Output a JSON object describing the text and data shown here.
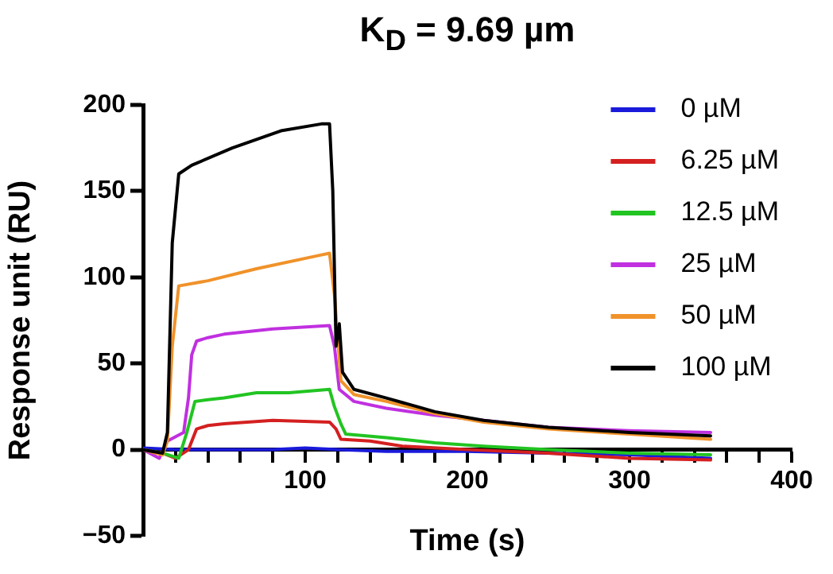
{
  "chart_data": {
    "type": "line",
    "title": "K$_{D}$ = 9.69 µm",
    "xlabel": "Time (s)",
    "ylabel": "Response unit (RU)",
    "xlim": [
      0,
      400
    ],
    "ylim": [
      -50,
      200
    ],
    "xticks": [
      {
        "value": 0,
        "label": null
      },
      {
        "value": 20,
        "label": null
      },
      {
        "value": 40,
        "label": null
      },
      {
        "value": 60,
        "label": null
      },
      {
        "value": 80,
        "label": null
      },
      100,
      {
        "value": 120,
        "label": null
      },
      {
        "value": 140,
        "label": null
      },
      {
        "value": 160,
        "label": null
      },
      {
        "value": 180,
        "label": null
      },
      200,
      {
        "value": 220,
        "label": null
      },
      {
        "value": 240,
        "label": null
      },
      {
        "value": 260,
        "label": null
      },
      {
        "value": 280,
        "label": null
      },
      300,
      {
        "value": 320,
        "label": null
      },
      {
        "value": 340,
        "label": null
      },
      {
        "value": 360,
        "label": null
      },
      {
        "value": 380,
        "label": null
      },
      400
    ],
    "yticks": [
      -50,
      0,
      50,
      100,
      150,
      200
    ],
    "grid": false,
    "legend": "top right",
    "marker": "none",
    "line_style": "solid",
    "series": [
      {
        "name": "0 µM",
        "color": "#1a1adb",
        "x": [
          0,
          20,
          40,
          60,
          80,
          100,
          120,
          150,
          200,
          250,
          300,
          350
        ],
        "values": [
          1,
          0,
          0,
          0,
          0,
          1,
          0,
          -1,
          -1,
          -2,
          -3,
          -5
        ]
      },
      {
        "name": "6.25 µM",
        "color": "#d42020",
        "x": [
          0,
          12,
          20,
          28,
          33,
          40,
          50,
          80,
          115,
          119,
          122,
          140,
          160,
          200,
          250,
          300,
          350
        ],
        "values": [
          0,
          -2,
          -5,
          0,
          12,
          14,
          15,
          17,
          16,
          12,
          6,
          5,
          2,
          0,
          -2,
          -5,
          -6
        ]
      },
      {
        "name": "12.5 µM",
        "color": "#22c422",
        "x": [
          0,
          12,
          22,
          27,
          32,
          40,
          50,
          70,
          90,
          115,
          118,
          122,
          125,
          150,
          180,
          210,
          250,
          300,
          350
        ],
        "values": [
          0,
          -2,
          -5,
          10,
          28,
          29,
          30,
          33,
          33,
          35,
          25,
          15,
          9,
          7,
          4,
          2,
          0,
          -2,
          -3
        ]
      },
      {
        "name": "25 µM",
        "color": "#c030e0",
        "x": [
          0,
          10,
          15,
          25,
          28,
          30,
          33,
          40,
          50,
          80,
          115,
          118,
          121,
          130,
          150,
          180,
          210,
          250,
          300,
          350
        ],
        "values": [
          0,
          -5,
          5,
          10,
          30,
          55,
          63,
          65,
          67,
          70,
          72,
          60,
          35,
          28,
          24,
          20,
          17,
          13,
          11,
          10
        ]
      },
      {
        "name": "50 µM",
        "color": "#f0922a",
        "x": [
          0,
          12,
          15,
          18,
          22,
          40,
          70,
          110,
          115,
          118,
          122,
          130,
          150,
          180,
          210,
          250,
          300,
          350
        ],
        "values": [
          0,
          -3,
          5,
          60,
          95,
          98,
          105,
          113,
          114,
          90,
          40,
          32,
          28,
          21,
          16,
          12,
          9,
          6
        ]
      },
      {
        "name": "100 µM",
        "color": "#000000",
        "x": [
          0,
          12,
          15,
          18,
          22,
          30,
          55,
          85,
          110,
          115,
          117,
          119,
          121,
          123,
          130,
          150,
          180,
          210,
          250,
          300,
          350
        ],
        "values": [
          0,
          -2,
          10,
          120,
          160,
          165,
          175,
          185,
          189,
          189,
          150,
          60,
          73,
          45,
          35,
          30,
          22,
          17,
          13,
          10,
          8
        ]
      }
    ]
  }
}
